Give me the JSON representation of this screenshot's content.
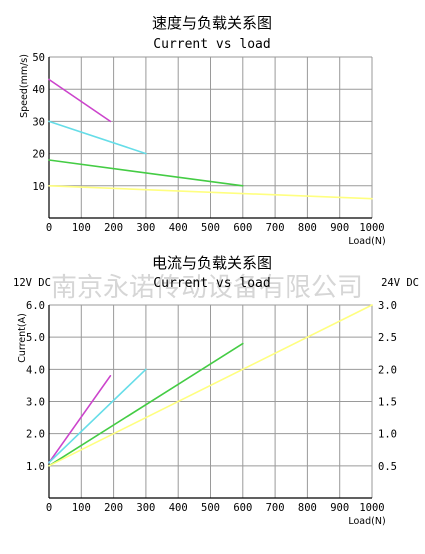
{
  "watermark": "南京永诺传动设备有限公司",
  "chart_data": [
    {
      "type": "line",
      "title": "速度与负载关系图",
      "subtitle": "Current vs load",
      "xlabel": "Load(N)",
      "ylabel": "Speed(mm/s)",
      "xlim": [
        0,
        1000
      ],
      "ylim": [
        0,
        50
      ],
      "x_ticks": [
        "0",
        "100",
        "200",
        "300",
        "400",
        "500",
        "600",
        "700",
        "800",
        "900",
        "1000"
      ],
      "y_ticks": [
        "10",
        "20",
        "30",
        "40",
        "50"
      ],
      "grid": true,
      "series": [
        {
          "color": "#cc44cc",
          "x": [
            0,
            190
          ],
          "y": [
            43,
            30
          ]
        },
        {
          "color": "#66dde8",
          "x": [
            0,
            300
          ],
          "y": [
            30,
            20
          ]
        },
        {
          "color": "#44cc44",
          "x": [
            0,
            600
          ],
          "y": [
            18,
            10
          ]
        },
        {
          "color": "#ffff80",
          "x": [
            0,
            1000
          ],
          "y": [
            10,
            6
          ]
        }
      ]
    },
    {
      "type": "line",
      "title": "电流与负载关系图",
      "subtitle": "Current vs load",
      "left_axis_title": "12V DC",
      "right_axis_title": "24V DC",
      "xlabel": "Load(N)",
      "ylabel": "Current(A)",
      "xlim": [
        0,
        1000
      ],
      "ylim": [
        0,
        6
      ],
      "y2lim": [
        0,
        3
      ],
      "x_ticks": [
        "0",
        "100",
        "200",
        "300",
        "400",
        "500",
        "600",
        "700",
        "800",
        "900",
        "1000"
      ],
      "y_ticks": [
        "1.0",
        "2.0",
        "3.0",
        "4.0",
        "5.0",
        "6.0"
      ],
      "y2_ticks": [
        "0.5",
        "1.0",
        "1.5",
        "2.0",
        "2.5",
        "3.0"
      ],
      "grid": true,
      "series": [
        {
          "color": "#cc44cc",
          "x": [
            0,
            190
          ],
          "y": [
            1.1,
            3.8
          ]
        },
        {
          "color": "#66dde8",
          "x": [
            0,
            300
          ],
          "y": [
            1.1,
            4.0
          ]
        },
        {
          "color": "#44cc44",
          "x": [
            0,
            600
          ],
          "y": [
            1.0,
            4.8
          ]
        },
        {
          "color": "#ffff80",
          "x": [
            0,
            1000
          ],
          "y": [
            1.0,
            6.0
          ]
        }
      ]
    }
  ]
}
